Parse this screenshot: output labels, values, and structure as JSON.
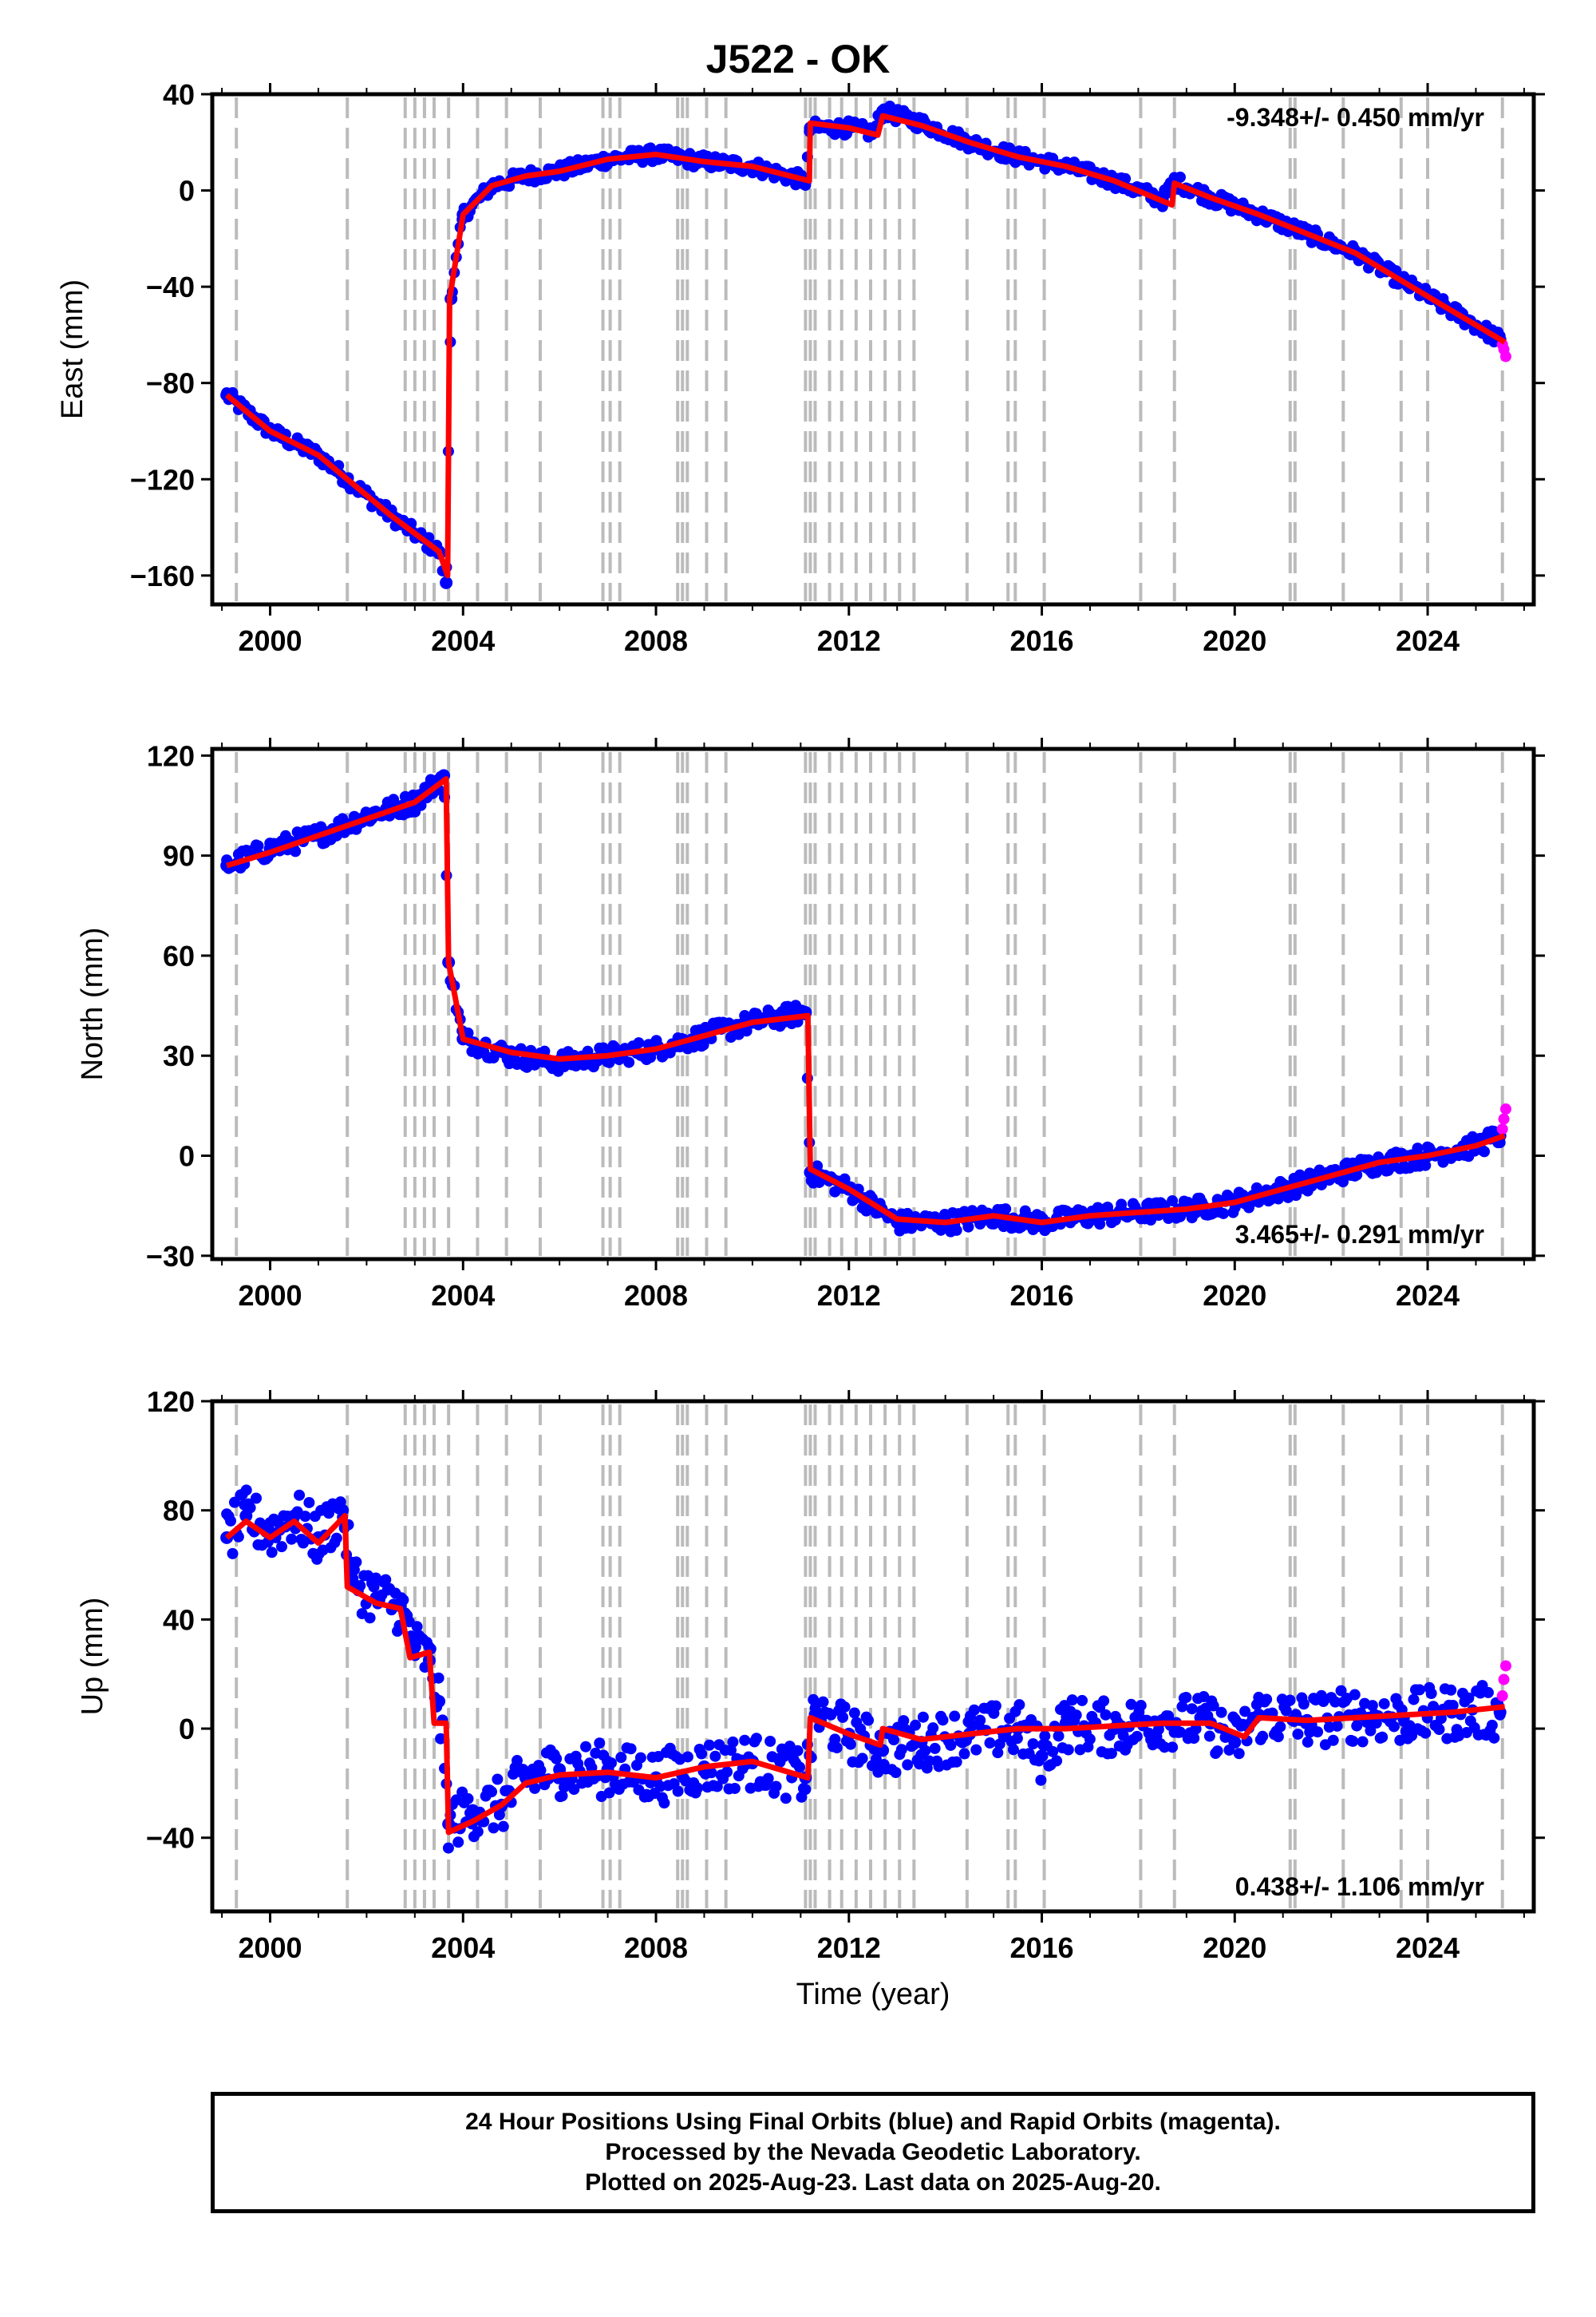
{
  "title": "J522 - OK",
  "colors": {
    "final": "#0000ff",
    "rapid": "#ff00ff",
    "model": "#ff0000",
    "event_line": "#bbbbbb"
  },
  "caption": [
    "24 Hour Positions Using Final Orbits (blue) and Rapid Orbits (magenta).",
    "Processed by the Nevada Geodetic Laboratory.",
    "Plotted on 2025-Aug-23. Last data on 2025-Aug-20."
  ],
  "chart_data": [
    {
      "type": "scatter",
      "component": "east",
      "title": "J522 - OK",
      "ylabel": "East (mm)",
      "xlabel": "",
      "xlim": [
        1998.8,
        2026.2
      ],
      "ylim": [
        -172,
        40
      ],
      "xticks": [
        2000,
        2004,
        2008,
        2012,
        2016,
        2020,
        2024
      ],
      "yticks": [
        -160,
        -120,
        -80,
        -40,
        0,
        40
      ],
      "rate_label": "-9.348+/- 0.450 mm/yr",
      "series": [
        {
          "role": "final",
          "x": [
            1999.1,
            2000.0,
            2001.0,
            2001.6,
            2002.5,
            2003.5,
            2003.65,
            2003.75,
            2004.0,
            2004.6,
            2005.3,
            2006.0,
            2007.0,
            2008.0,
            2009.0,
            2010.0,
            2011.1,
            2011.2,
            2012.0,
            2012.5,
            2012.7,
            2013.5,
            2014.5,
            2015.5,
            2016.5,
            2017.5,
            2018.5,
            2018.75,
            2019.5,
            2020.5,
            2021.5,
            2022.5,
            2023.5,
            2024.5,
            2025.5
          ],
          "y": [
            -85,
            -100,
            -110,
            -120,
            -135,
            -150,
            -163,
            -45,
            -10,
            2,
            6,
            8,
            13,
            15,
            12,
            10,
            4,
            26,
            26,
            24,
            33,
            28,
            20,
            14,
            10,
            4,
            -4,
            4,
            -3,
            -10,
            -18,
            -26,
            -38,
            -50,
            -62
          ]
        },
        {
          "role": "rapid",
          "x": [
            2025.55,
            2025.58,
            2025.62
          ],
          "y": [
            -64,
            -66,
            -69
          ]
        },
        {
          "role": "model",
          "x": [
            1999.1,
            2000.0,
            2001.0,
            2001.6,
            2002.5,
            2003.5,
            2003.68,
            2003.72,
            2004.0,
            2004.6,
            2005.3,
            2006.0,
            2007.0,
            2008.0,
            2009.0,
            2010.0,
            2011.18,
            2011.2,
            2012.0,
            2012.6,
            2012.7,
            2013.5,
            2014.5,
            2015.5,
            2016.5,
            2017.5,
            2018.7,
            2018.75,
            2019.5,
            2020.5,
            2021.5,
            2022.5,
            2023.5,
            2024.5,
            2025.6
          ],
          "y": [
            -85,
            -100,
            -110,
            -120,
            -135,
            -150,
            -160,
            -45,
            -10,
            2,
            6,
            8,
            13,
            15,
            12,
            10,
            4,
            28,
            26,
            23,
            31,
            27,
            20,
            14,
            10,
            4,
            -6,
            3,
            -3,
            -10,
            -18,
            -26,
            -38,
            -50,
            -63
          ]
        }
      ]
    },
    {
      "type": "scatter",
      "component": "north",
      "ylabel": "North (mm)",
      "xlabel": "",
      "xlim": [
        1998.8,
        2026.2
      ],
      "ylim": [
        -31,
        122
      ],
      "xticks": [
        2000,
        2004,
        2008,
        2012,
        2016,
        2020,
        2024
      ],
      "yticks": [
        -30,
        0,
        30,
        60,
        90,
        120
      ],
      "rate_label": "3.465+/- 0.291 mm/yr",
      "series": [
        {
          "role": "final",
          "x": [
            1999.1,
            2000.0,
            2001.0,
            2002.0,
            2003.0,
            2003.6,
            2003.7,
            2004.0,
            2005.0,
            2006.0,
            2007.0,
            2008.0,
            2009.0,
            2010.0,
            2011.1,
            2011.2,
            2012.0,
            2013.0,
            2014.0,
            2015.0,
            2016.0,
            2017.0,
            2018.0,
            2019.0,
            2020.0,
            2021.0,
            2022.0,
            2023.0,
            2024.0,
            2025.0,
            2025.5
          ],
          "y": [
            87,
            92,
            96,
            102,
            106,
            114,
            58,
            35,
            30,
            28,
            30,
            32,
            36,
            40,
            43,
            -5,
            -10,
            -20,
            -20,
            -18,
            -20,
            -18,
            -17,
            -16,
            -14,
            -10,
            -6,
            -2,
            0,
            3,
            6
          ]
        },
        {
          "role": "rapid",
          "x": [
            2025.55,
            2025.58,
            2025.62
          ],
          "y": [
            8,
            11,
            14
          ]
        },
        {
          "role": "model",
          "x": [
            1999.1,
            2000.0,
            2001.0,
            2002.0,
            2003.0,
            2003.65,
            2003.7,
            2004.0,
            2005.0,
            2006.0,
            2007.0,
            2008.0,
            2009.0,
            2010.0,
            2011.15,
            2011.2,
            2012.0,
            2013.0,
            2014.0,
            2015.0,
            2016.0,
            2017.0,
            2018.0,
            2019.0,
            2020.0,
            2021.0,
            2022.0,
            2023.0,
            2024.0,
            2025.0,
            2025.6
          ],
          "y": [
            87,
            91,
            96,
            101,
            106,
            113,
            58,
            35,
            31,
            29,
            30,
            32,
            36,
            40,
            42,
            -4,
            -10,
            -19,
            -20,
            -18,
            -20,
            -18,
            -17,
            -16,
            -14,
            -10,
            -6,
            -2,
            0,
            3,
            6
          ]
        }
      ]
    },
    {
      "type": "scatter",
      "component": "up",
      "ylabel": "Up (mm)",
      "xlabel": "Time (year)",
      "xlim": [
        1998.8,
        2026.2
      ],
      "ylim": [
        -67,
        120
      ],
      "xticks": [
        2000,
        2004,
        2008,
        2012,
        2016,
        2020,
        2024
      ],
      "yticks": [
        -40,
        0,
        40,
        80,
        120
      ],
      "rate_label": "0.438+/- 1.106 mm/yr",
      "series": [
        {
          "role": "final",
          "x": [
            1999.1,
            1999.5,
            2000.0,
            2000.5,
            2001.0,
            2001.5,
            2001.7,
            2002.2,
            2002.7,
            2003.0,
            2003.3,
            2003.5,
            2003.7,
            2004.2,
            2004.8,
            2005.3,
            2006.0,
            2007.0,
            2008.0,
            2009.0,
            2010.0,
            2011.1,
            2011.3,
            2012.0,
            2012.7,
            2013.5,
            2014.5,
            2015.5,
            2016.0,
            2016.5,
            2017.5,
            2018.5,
            2019.5,
            2020.0,
            2020.5,
            2021.5,
            2022.5,
            2023.5,
            2024.5,
            2025.5
          ],
          "y": [
            70,
            78,
            72,
            78,
            70,
            80,
            55,
            48,
            45,
            30,
            25,
            10,
            -35,
            -30,
            -28,
            -18,
            -15,
            -15,
            -18,
            -14,
            -12,
            -18,
            5,
            -2,
            -8,
            -5,
            -2,
            0,
            -10,
            2,
            0,
            3,
            2,
            -5,
            5,
            3,
            5,
            4,
            6,
            6
          ]
        },
        {
          "role": "rapid",
          "x": [
            2025.55,
            2025.58,
            2025.62
          ],
          "y": [
            12,
            18,
            23
          ]
        },
        {
          "role": "model",
          "x": [
            1999.1,
            1999.5,
            2000.0,
            2000.5,
            2001.0,
            2001.55,
            2001.6,
            2002.2,
            2002.7,
            2002.9,
            2003.3,
            2003.4,
            2003.65,
            2003.7,
            2004.2,
            2004.8,
            2005.3,
            2006.0,
            2007.0,
            2008.0,
            2009.0,
            2010.0,
            2011.15,
            2011.2,
            2012.0,
            2012.65,
            2012.7,
            2013.5,
            2014.5,
            2015.5,
            2016.5,
            2017.5,
            2018.5,
            2019.5,
            2020.2,
            2020.5,
            2021.5,
            2022.5,
            2023.5,
            2024.5,
            2025.6
          ],
          "y": [
            70,
            76,
            70,
            76,
            68,
            78,
            52,
            46,
            44,
            26,
            28,
            2,
            2,
            -38,
            -34,
            -28,
            -20,
            -17,
            -16,
            -18,
            -14,
            -12,
            -18,
            4,
            -2,
            -6,
            0,
            -4,
            -2,
            0,
            0,
            1,
            2,
            2,
            -3,
            4,
            3,
            4,
            5,
            6,
            8
          ]
        }
      ]
    }
  ]
}
